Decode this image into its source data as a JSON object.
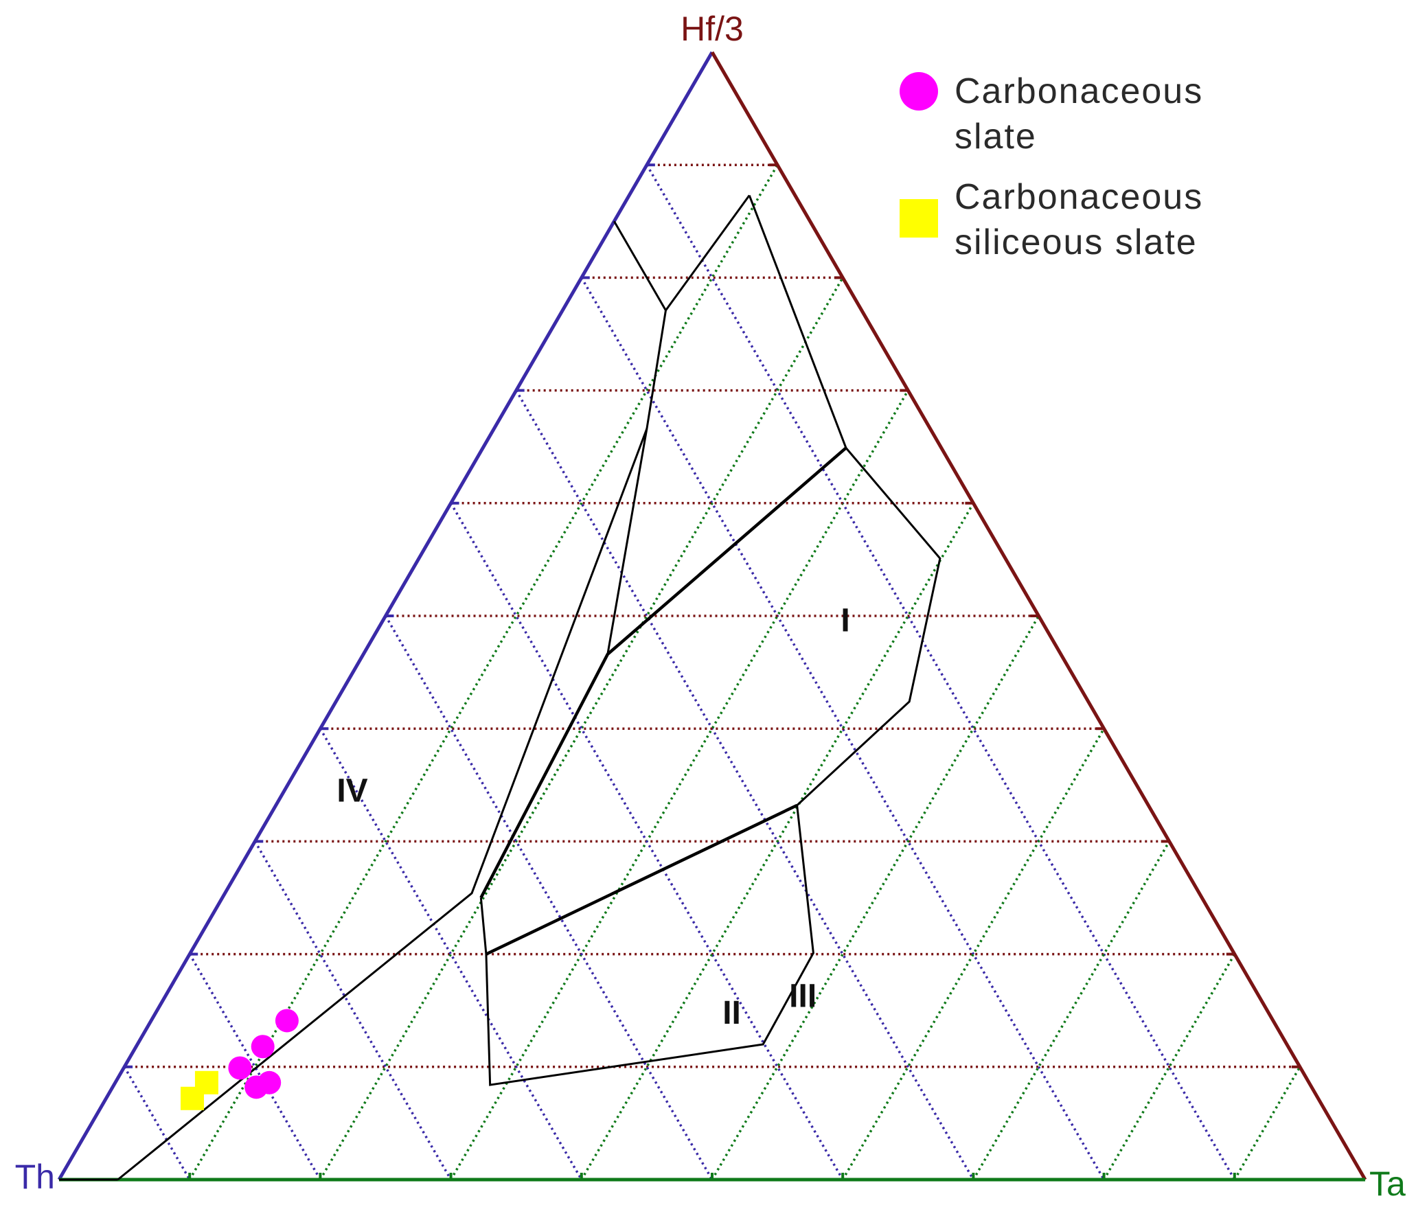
{
  "chart_data": {
    "type": "ternary",
    "apices": {
      "top": "Hf/3",
      "left": "Th",
      "right": "Ta"
    },
    "component_order": [
      "Th",
      "Ta",
      "Hf/3"
    ],
    "ticks": [
      10,
      20,
      30,
      40,
      50,
      60,
      70,
      80,
      90
    ],
    "grid": true,
    "axis_colors": {
      "top": "#7a1414",
      "left": "#3a2aa8",
      "right": "#0f7a1a"
    },
    "series": [
      {
        "name": "Carbonaceous slate",
        "color": "#ff00ff",
        "marker": "circle",
        "values": [
          [
            75.5,
            10.4,
            14.1
          ],
          [
            78.5,
            9.7,
            11.8
          ],
          [
            81.2,
            8.9,
            9.9
          ],
          [
            80.8,
            11.0,
            8.2
          ],
          [
            79.6,
            11.8,
            8.6
          ]
        ]
      },
      {
        "name": "Carbonaceous siliceous slate",
        "color": "#ffff00",
        "marker": "square",
        "values": [
          [
            84.4,
            7.0,
            8.6
          ],
          [
            86.2,
            6.6,
            7.2
          ]
        ]
      }
    ],
    "boundaries": [
      {
        "width": 3,
        "points": [
          [
            100,
            0,
            0
          ],
          [
            95.5,
            4.5,
            0
          ]
        ]
      },
      {
        "width": 3,
        "points": [
          [
            95.5,
            4.5,
            0
          ],
          [
            55.7,
            18.9,
            25.4
          ],
          [
            21.7,
            11.7,
            66.6
          ]
        ]
      },
      {
        "width": 3,
        "points": [
          [
            15.0,
            0,
            85.0
          ],
          [
            15.0,
            7.9,
            77.1
          ],
          [
            3.5,
            9.2,
            87.3
          ]
        ]
      },
      {
        "width": 3,
        "points": [
          [
            15.0,
            7.9,
            77.1
          ],
          [
            21.7,
            11.7,
            66.6
          ],
          [
            34.7,
            18.7,
            46.6
          ]
        ]
      },
      {
        "width": 4.5,
        "points": [
          [
            55.2,
            19.8,
            25.0
          ],
          [
            34.7,
            18.7,
            46.6
          ],
          [
            7.3,
            27.8,
            64.9
          ]
        ]
      },
      {
        "width": 3,
        "points": [
          [
            7.3,
            27.8,
            64.9
          ],
          [
            3.5,
            9.2,
            87.3
          ]
        ]
      },
      {
        "width": 3,
        "points": [
          [
            7.3,
            27.8,
            64.9
          ],
          [
            5.0,
            39.9,
            55.1
          ],
          [
            13.7,
            43.9,
            42.4
          ],
          [
            26.9,
            39.9,
            33.2
          ]
        ]
      },
      {
        "width": 4.5,
        "points": [
          [
            26.9,
            39.9,
            33.2
          ],
          [
            57.3,
            22.7,
            20.0
          ]
        ]
      },
      {
        "width": 3,
        "points": [
          [
            26.9,
            39.9,
            33.2
          ],
          [
            32.2,
            47.7,
            20.1
          ],
          [
            40.1,
            47.9,
            12.0
          ],
          [
            62.8,
            28.8,
            8.4
          ],
          [
            57.3,
            22.7,
            20.0
          ],
          [
            55.2,
            19.8,
            25.0
          ]
        ]
      }
    ],
    "regions": [
      {
        "label": "I",
        "point": [
          15.1,
          35.5,
          49.4
        ]
      },
      {
        "label": "II",
        "point": [
          41.2,
          44.2,
          14.6
        ]
      },
      {
        "label": "III",
        "point": [
          35.0,
          48.9,
          16.1
        ]
      },
      {
        "label": "IV",
        "point": [
          60.4,
          5.3,
          34.3
        ]
      }
    ]
  }
}
